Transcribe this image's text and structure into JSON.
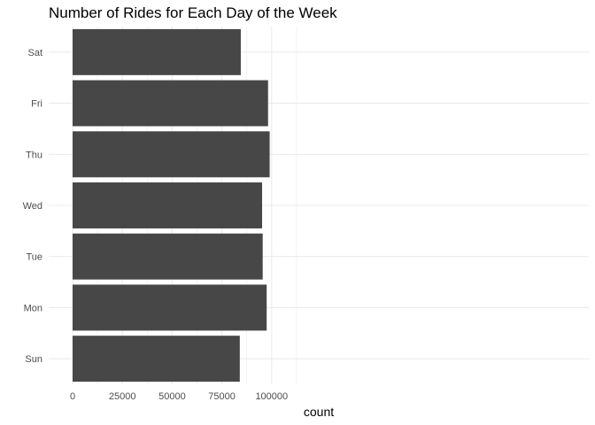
{
  "chart_data": {
    "type": "bar",
    "orientation": "horizontal",
    "title": "Number of Rides for Each Day of the Week",
    "xlabel": "count",
    "ylabel": "",
    "categories": [
      "Sun",
      "Mon",
      "Tue",
      "Wed",
      "Thu",
      "Fri",
      "Sat"
    ],
    "values": [
      84000,
      97500,
      95500,
      95200,
      99000,
      98200,
      84500
    ],
    "xlim": [
      0,
      103000
    ],
    "x_ticks": [
      0,
      25000,
      50000,
      75000,
      100000
    ],
    "x_tick_labels": [
      "0",
      "25000",
      "50000",
      "75000",
      "100000"
    ],
    "grid": true,
    "bar_color": "#474747",
    "grid_color": "#ebebeb",
    "legend": "none"
  }
}
